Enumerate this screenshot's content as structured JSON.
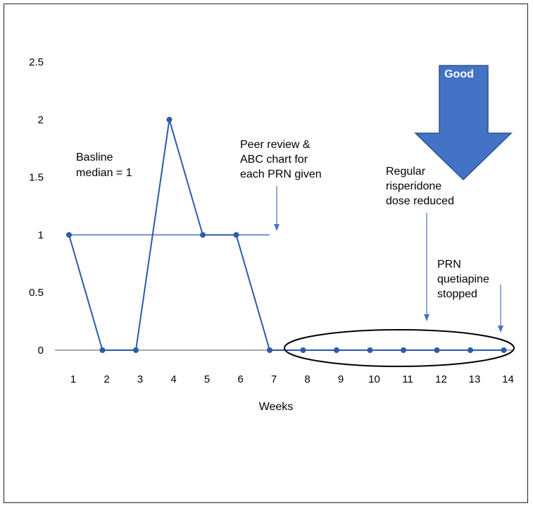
{
  "chart_data": {
    "type": "line",
    "title": "",
    "xlabel": "Weeks",
    "ylabel": "",
    "categories": [
      "1",
      "2",
      "3",
      "4",
      "5",
      "6",
      "7",
      "8",
      "9",
      "10",
      "11",
      "12",
      "13",
      "14"
    ],
    "x": [
      1,
      2,
      3,
      4,
      5,
      6,
      7,
      8,
      9,
      10,
      11,
      12,
      13,
      14
    ],
    "ylim": [
      0,
      2.5
    ],
    "yticks": [
      "0",
      "0.5",
      "1",
      "1.5",
      "2",
      "2.5"
    ],
    "series": [
      {
        "values": [
          1,
          0,
          0,
          2,
          1,
          1,
          0,
          0,
          0,
          0,
          0,
          0,
          0,
          0
        ]
      }
    ],
    "baseline": {
      "from_week": 1,
      "to_week": 7,
      "value": 1
    },
    "annotations": {
      "baseline": [
        "Basline",
        "median = 1"
      ],
      "peer_review": [
        "Peer review &",
        "ABC chart for",
        "each PRN given"
      ],
      "risperidone": [
        "Regular",
        "risperidone",
        "dose reduced"
      ],
      "quetiapine": [
        "PRN",
        "quetiapine",
        "stopped"
      ],
      "good": "Good"
    },
    "colors": {
      "series": "#2e5aa8",
      "baseline": "#4a72c4",
      "arrow_fill": "#4472c4",
      "arrow_stroke": "#2f528f"
    }
  }
}
